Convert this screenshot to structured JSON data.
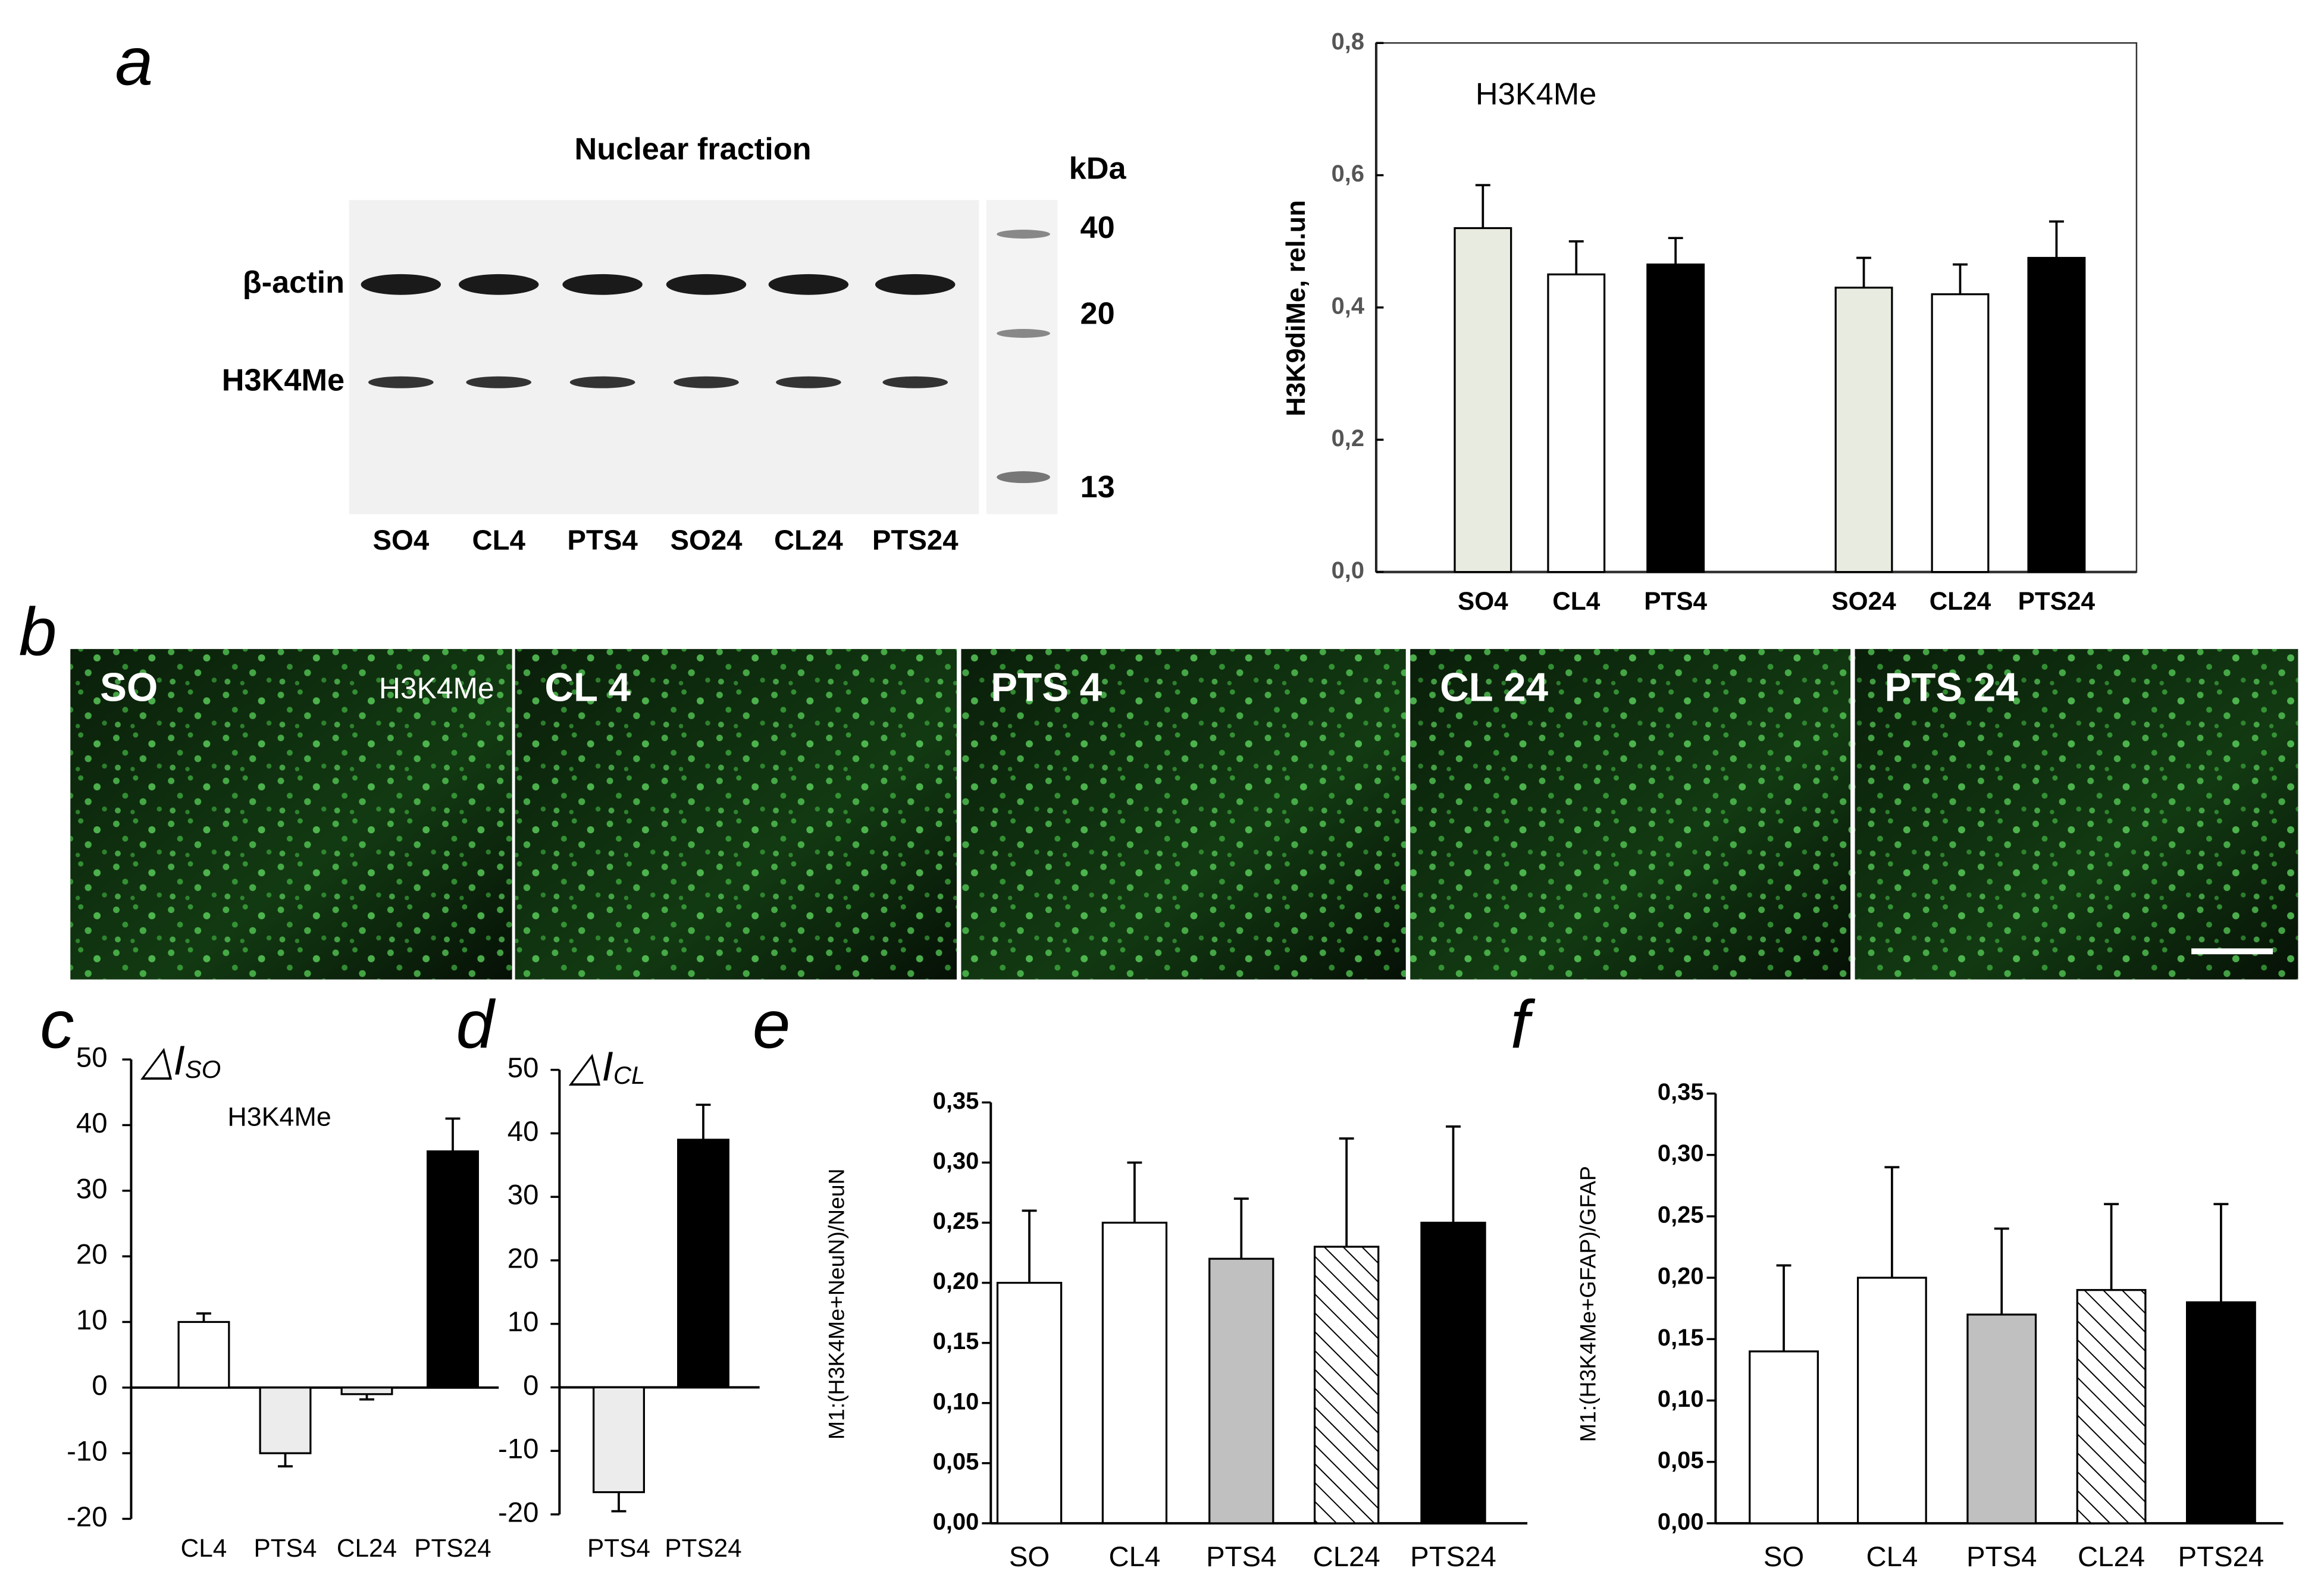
{
  "panel_letters": [
    "a",
    "b",
    "c",
    "d",
    "e",
    "f"
  ],
  "blot": {
    "title": "Nuclear fraction",
    "unit": "kDa",
    "markers": [
      40,
      20,
      13
    ],
    "rows": [
      "β-actin",
      "H3K4Me"
    ],
    "lanes": [
      "SO4",
      "CL4",
      "PTS4",
      "SO24",
      "CL24",
      "PTS24"
    ]
  },
  "micrographs": {
    "stain": "H3K4Me",
    "panels": [
      "SO",
      "CL 4",
      "PTS 4",
      "CL 24",
      "PTS 24"
    ]
  },
  "chart_data": [
    {
      "type": "bar",
      "title": "H3K4Me",
      "ylabel": "H3K9diMe, rel.un",
      "categories": [
        "SO4",
        "CL4",
        "PTS4",
        "SO24",
        "CL24",
        "PTS24"
      ],
      "values": [
        0.52,
        0.45,
        0.465,
        0.43,
        0.42,
        0.475
      ],
      "errors": [
        0.065,
        0.05,
        0.04,
        0.045,
        0.045,
        0.055
      ],
      "colors": [
        "#e8ebdf",
        "#ffffff",
        "#000000",
        "#e8ebdf",
        "#ffffff",
        "#000000"
      ],
      "ylim": [
        0,
        0.8
      ],
      "yticks": [
        {
          "value": 0,
          "label": "0,0"
        },
        {
          "value": 0.2,
          "label": "0,2"
        },
        {
          "value": 0.4,
          "label": "0,4"
        },
        {
          "value": 0.6,
          "label": "0,6"
        },
        {
          "value": 0.8,
          "label": "0,8"
        }
      ],
      "frame": true,
      "grid": false
    },
    {
      "type": "bar",
      "title": "H3K4Me",
      "ylabel": "△I",
      "ylabel_sub": "SO",
      "categories": [
        "CL4",
        "PTS4",
        "CL24",
        "PTS24"
      ],
      "values": [
        10,
        -10,
        -1,
        36
      ],
      "errors": [
        1.3,
        2,
        0.8,
        5
      ],
      "colors": [
        "#ffffff",
        "#ececec",
        "#ececec",
        "#000000"
      ],
      "ylim": [
        -20,
        50
      ],
      "yticks": [
        -20,
        -10,
        0,
        10,
        20,
        30,
        40,
        50
      ],
      "frame": false,
      "grid": false
    },
    {
      "type": "bar",
      "ylabel": "△I",
      "ylabel_sub": "CL",
      "categories": [
        "PTS4",
        "PTS24"
      ],
      "values": [
        -16.5,
        39
      ],
      "errors": [
        3,
        5.5
      ],
      "colors": [
        "#ececec",
        "#000000"
      ],
      "ylim": [
        -20,
        50
      ],
      "yticks": [
        -20,
        -10,
        0,
        10,
        20,
        30,
        40,
        50
      ],
      "frame": false,
      "grid": false
    },
    {
      "type": "bar",
      "ylabel": "M1:(H3K4Me+NeuN)/NeuN",
      "categories": [
        "SO",
        "CL4",
        "PTS4",
        "CL24",
        "PTS24"
      ],
      "values": [
        0.2,
        0.25,
        0.22,
        0.23,
        0.25
      ],
      "errors": [
        0.06,
        0.05,
        0.05,
        0.09,
        0.08
      ],
      "colors": [
        "#ffffff",
        "#ffffff",
        "#c0c0c0",
        "#ffffff",
        "#000000"
      ],
      "hatch": [
        null,
        "\\",
        "none",
        "/",
        null
      ],
      "ylim": [
        0,
        0.35
      ],
      "yticks": [
        {
          "value": 0,
          "label": "0,00"
        },
        {
          "value": 0.05,
          "label": "0,05"
        },
        {
          "value": 0.1,
          "label": "0,10"
        },
        {
          "value": 0.15,
          "label": "0,15"
        },
        {
          "value": 0.2,
          "label": "0,20"
        },
        {
          "value": 0.25,
          "label": "0,25"
        },
        {
          "value": 0.3,
          "label": "0,30"
        },
        {
          "value": 0.35,
          "label": "0,35"
        }
      ],
      "frame": false,
      "grid": false
    },
    {
      "type": "bar",
      "ylabel": "M1:(H3K4Me+GFAP)/GFAP",
      "categories": [
        "SO",
        "CL4",
        "PTS4",
        "CL24",
        "PTS24"
      ],
      "values": [
        0.14,
        0.2,
        0.17,
        0.19,
        0.18
      ],
      "errors": [
        0.07,
        0.09,
        0.07,
        0.07,
        0.08
      ],
      "colors": [
        "#ffffff",
        "#ffffff",
        "#c0c0c0",
        "#ffffff",
        "#000000"
      ],
      "hatch": [
        null,
        "\\",
        "none",
        "/",
        null
      ],
      "ylim": [
        0,
        0.35
      ],
      "yticks": [
        {
          "value": 0,
          "label": "0,00"
        },
        {
          "value": 0.05,
          "label": "0,05"
        },
        {
          "value": 0.1,
          "label": "0,10"
        },
        {
          "value": 0.15,
          "label": "0,15"
        },
        {
          "value": 0.2,
          "label": "0,20"
        },
        {
          "value": 0.25,
          "label": "0,25"
        },
        {
          "value": 0.3,
          "label": "0,30"
        },
        {
          "value": 0.35,
          "label": "0,35"
        }
      ],
      "frame": false,
      "grid": false
    }
  ]
}
